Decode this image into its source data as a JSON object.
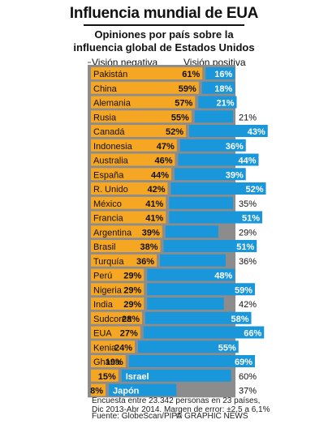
{
  "header": {
    "title": "Influencia mundial de EUA",
    "subtitle_line1": "Opiniones por país sobre la",
    "subtitle_line2": "influencia global de Estados Unidos"
  },
  "legend": {
    "negative_label": "Visión negativa",
    "positive_label": "Visión positiva"
  },
  "colors": {
    "negative": "#f5a623",
    "positive": "#1a96db",
    "panel": "#8c8c8c",
    "positive_light": "#b9def3"
  },
  "chart_data": {
    "type": "bar",
    "title": "Influencia mundial de EUA",
    "subtitle": "Opiniones por país sobre la influencia global de Estados Unidos",
    "series": [
      {
        "name": "Visión negativa",
        "unit": "%"
      },
      {
        "name": "Visión positiva",
        "unit": "%"
      }
    ],
    "rows": [
      {
        "country": "Pakistán",
        "negative": 61,
        "positive": 16
      },
      {
        "country": "China",
        "negative": 59,
        "positive": 18
      },
      {
        "country": "Alemania",
        "negative": 57,
        "positive": 21
      },
      {
        "country": "Rusia",
        "negative": 55,
        "positive": 21
      },
      {
        "country": "Canadá",
        "negative": 52,
        "positive": 43
      },
      {
        "country": "Indonesia",
        "negative": 47,
        "positive": 36
      },
      {
        "country": "Australia",
        "negative": 46,
        "positive": 44
      },
      {
        "country": "España",
        "negative": 44,
        "positive": 39
      },
      {
        "country": "R. Unido",
        "negative": 42,
        "positive": 52
      },
      {
        "country": "México",
        "negative": 41,
        "positive": 35
      },
      {
        "country": "Francia",
        "negative": 41,
        "positive": 51
      },
      {
        "country": "Argentina",
        "negative": 39,
        "positive": 29
      },
      {
        "country": "Brasil",
        "negative": 38,
        "positive": 51
      },
      {
        "country": "Turquía",
        "negative": 36,
        "positive": 36
      },
      {
        "country": "Perú",
        "negative": 29,
        "positive": 48
      },
      {
        "country": "Nigeria",
        "negative": 29,
        "positive": 59
      },
      {
        "country": "India",
        "negative": 29,
        "positive": 42
      },
      {
        "country": "Sudcorea",
        "negative": 28,
        "positive": 58
      },
      {
        "country": "EUA",
        "negative": 27,
        "positive": 66
      },
      {
        "country": "Kenia",
        "negative": 24,
        "positive": 55
      },
      {
        "country": "Ghana",
        "negative": 19,
        "positive": 69
      },
      {
        "country": "Israel",
        "negative": 15,
        "positive": 60
      },
      {
        "country": "Japón",
        "negative": 8,
        "positive": 37
      }
    ]
  },
  "footer": {
    "note_line1": "Encuesta entre 23.342 personas en 23 países,",
    "note_line2": "Dic 2013-Abr 2014. Margen de error: ±2,5 a 6,1%",
    "source": "Fuente: GlobeScan/PIPA",
    "credit": "© GRAPHIC NEWS"
  }
}
